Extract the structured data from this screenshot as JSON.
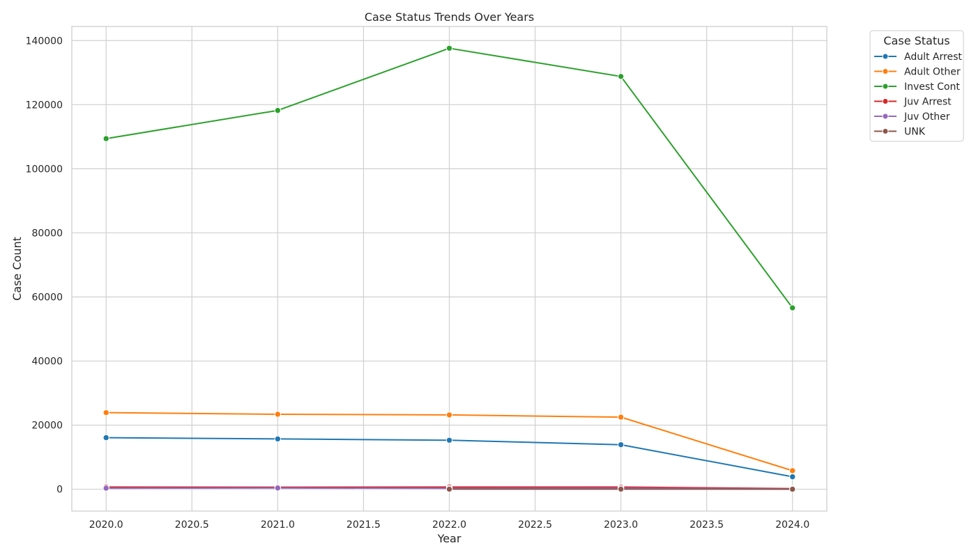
{
  "chart_data": {
    "type": "line",
    "title": "Case Status Trends Over Years",
    "xlabel": "Year",
    "ylabel": "Case Count",
    "x": [
      2020,
      2021,
      2022,
      2023,
      2024
    ],
    "xlim": [
      2019.8,
      2024.2
    ],
    "ylim": [
      -6800,
      144400
    ],
    "x_ticks": [
      2020.0,
      2020.5,
      2021.0,
      2021.5,
      2022.0,
      2022.5,
      2023.0,
      2023.5,
      2024.0
    ],
    "x_tick_labels": [
      "2020.0",
      "2020.5",
      "2021.0",
      "2021.5",
      "2022.0",
      "2022.5",
      "2023.0",
      "2023.5",
      "2024.0"
    ],
    "y_ticks": [
      0,
      20000,
      40000,
      60000,
      80000,
      100000,
      120000,
      140000
    ],
    "y_tick_labels": [
      "0",
      "20000",
      "40000",
      "60000",
      "80000",
      "100000",
      "120000",
      "140000"
    ],
    "grid": true,
    "legend": {
      "title": "Case Status",
      "placement": "outside-top-right"
    },
    "series": [
      {
        "name": "Adult Arrest",
        "color": "#1f77b4",
        "x": [
          2020,
          2021,
          2022,
          2023,
          2024
        ],
        "values": [
          16100,
          15700,
          15300,
          13900,
          3900
        ]
      },
      {
        "name": "Adult Other",
        "color": "#ff7f0e",
        "x": [
          2020,
          2021,
          2022,
          2023,
          2024
        ],
        "values": [
          23900,
          23400,
          23200,
          22500,
          5800
        ]
      },
      {
        "name": "Invest Cont",
        "color": "#2ca02c",
        "x": [
          2020,
          2021,
          2022,
          2023,
          2024
        ],
        "values": [
          109400,
          118200,
          137600,
          128800,
          56600
        ]
      },
      {
        "name": "Juv Arrest",
        "color": "#d62728",
        "x": [
          2020,
          2021,
          2022,
          2023,
          2024
        ],
        "values": [
          700,
          650,
          700,
          700,
          200
        ]
      },
      {
        "name": "Juv Other",
        "color": "#9467bd",
        "x": [
          2020,
          2021,
          2022,
          2023,
          2024
        ],
        "values": [
          350,
          400,
          300,
          350,
          100
        ]
      },
      {
        "name": "UNK",
        "color": "#8c564b",
        "x": [
          2022,
          2023,
          2024
        ],
        "values": [
          30,
          40,
          20
        ]
      }
    ]
  }
}
